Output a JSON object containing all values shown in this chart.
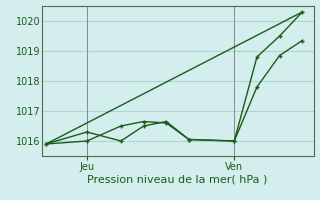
{
  "title": "",
  "xlabel": "Pression niveau de la mer( hPa )",
  "bg_color": "#d4eeed",
  "grid_color": "#a8d8d0",
  "line_color": "#1a5c1a",
  "ylim": [
    1015.5,
    1020.5
  ],
  "yticks": [
    1016,
    1017,
    1018,
    1019,
    1020
  ],
  "xlim": [
    0,
    12
  ],
  "x_jeu": 2.0,
  "x_ven": 8.5,
  "series1_x": [
    0.2,
    2.0,
    3.5,
    4.5,
    5.5,
    6.5,
    8.5,
    9.5,
    10.5,
    11.5
  ],
  "series1_y": [
    1015.9,
    1016.0,
    1016.5,
    1016.65,
    1016.6,
    1016.05,
    1016.0,
    1017.8,
    1018.85,
    1019.35
  ],
  "series2_x": [
    0.2,
    2.0,
    3.5,
    4.5,
    5.5,
    6.5,
    8.5,
    9.5,
    10.5,
    11.5
  ],
  "series2_y": [
    1015.9,
    1016.3,
    1016.0,
    1016.5,
    1016.65,
    1016.05,
    1016.0,
    1018.8,
    1019.5,
    1020.3
  ],
  "series3_x": [
    0.2,
    11.5
  ],
  "series3_y": [
    1015.9,
    1020.3
  ],
  "xtick_pos": [
    2.0,
    8.5
  ],
  "xtick_labels": [
    "Jeu",
    "Ven"
  ]
}
